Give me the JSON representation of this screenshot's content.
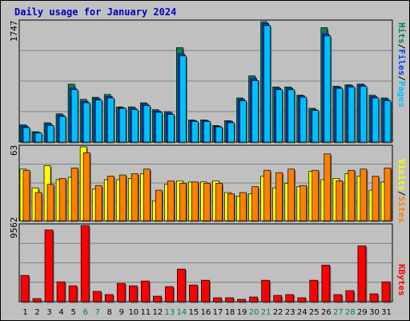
{
  "title": "Daily usage for January 2024",
  "colors": {
    "background": "#c0c0c0",
    "title": "#0000c0",
    "hits": "#00805c",
    "files": "#0040ff",
    "pages": "#00c0ff",
    "visits": "#ffff00",
    "sites": "#ff8000",
    "kbytes": "#ff0000",
    "weekend_label": "#00805c"
  },
  "labels": {
    "hits": "Hits",
    "files": "Files",
    "pages": "Pages",
    "visits": "Visits",
    "sites": "Sites",
    "kbytes": "KBytes",
    "separator": "/"
  },
  "chart_data": [
    {
      "type": "bar",
      "title": "Daily usage for January 2024",
      "categories": [
        "1",
        "2",
        "3",
        "4",
        "5",
        "6",
        "7",
        "8",
        "9",
        "10",
        "11",
        "12",
        "13",
        "14",
        "15",
        "16",
        "17",
        "18",
        "19",
        "20",
        "21",
        "22",
        "23",
        "24",
        "25",
        "26",
        "27",
        "28",
        "29",
        "30",
        "31"
      ],
      "weekend_days": [
        6,
        7,
        13,
        14,
        20,
        21,
        27,
        28
      ],
      "ymax_label": "1747",
      "ylim": [
        0,
        1747
      ],
      "series": [
        {
          "name": "Hits",
          "values": [
            250,
            150,
            280,
            410,
            840,
            620,
            650,
            690,
            510,
            510,
            570,
            470,
            440,
            1370,
            320,
            320,
            240,
            310,
            640,
            960,
            1747,
            800,
            800,
            680,
            490,
            1660,
            810,
            830,
            840,
            680,
            640
          ]
        },
        {
          "name": "Files",
          "values": [
            230,
            140,
            260,
            390,
            780,
            590,
            630,
            660,
            500,
            490,
            550,
            450,
            420,
            1280,
            310,
            310,
            230,
            300,
            620,
            920,
            1720,
            780,
            780,
            670,
            470,
            1570,
            800,
            820,
            830,
            660,
            620
          ]
        },
        {
          "name": "Pages",
          "values": [
            210,
            130,
            240,
            370,
            760,
            570,
            610,
            640,
            490,
            470,
            530,
            430,
            400,
            1250,
            300,
            300,
            220,
            280,
            600,
            890,
            1690,
            760,
            760,
            650,
            460,
            1540,
            780,
            800,
            810,
            640,
            600
          ]
        }
      ]
    },
    {
      "type": "bar",
      "categories": [
        "1",
        "2",
        "3",
        "4",
        "5",
        "6",
        "7",
        "8",
        "9",
        "10",
        "11",
        "12",
        "13",
        "14",
        "15",
        "16",
        "17",
        "18",
        "19",
        "20",
        "21",
        "22",
        "23",
        "24",
        "25",
        "26",
        "27",
        "28",
        "29",
        "30",
        "31"
      ],
      "ymax_label": "63",
      "ylim": [
        0,
        63
      ],
      "series": [
        {
          "name": "Visits",
          "values": [
            44,
            28,
            47,
            35,
            37,
            63,
            27,
            35,
            35,
            36,
            40,
            17,
            31,
            34,
            33,
            33,
            34,
            24,
            21,
            23,
            38,
            28,
            32,
            29,
            42,
            35,
            36,
            40,
            38,
            26,
            33
          ]
        },
        {
          "name": "Sites",
          "values": [
            43,
            24,
            31,
            36,
            45,
            58,
            30,
            38,
            39,
            40,
            44,
            26,
            34,
            32,
            33,
            32,
            32,
            23,
            24,
            29,
            43,
            41,
            44,
            30,
            43,
            57,
            34,
            43,
            44,
            38,
            45
          ]
        }
      ]
    },
    {
      "type": "bar",
      "categories": [
        "1",
        "2",
        "3",
        "4",
        "5",
        "6",
        "7",
        "8",
        "9",
        "10",
        "11",
        "12",
        "13",
        "14",
        "15",
        "16",
        "17",
        "18",
        "19",
        "20",
        "21",
        "22",
        "23",
        "24",
        "25",
        "26",
        "27",
        "28",
        "29",
        "30",
        "31"
      ],
      "ymax_label": "9562",
      "ylim": [
        0,
        9562
      ],
      "series": [
        {
          "name": "KBytes",
          "values": [
            3300,
            400,
            9000,
            2500,
            2000,
            9562,
            1300,
            900,
            2300,
            2000,
            2600,
            700,
            1900,
            4100,
            2100,
            2700,
            500,
            500,
            300,
            600,
            2700,
            800,
            900,
            500,
            2700,
            4600,
            900,
            1400,
            7000,
            1000,
            2500
          ]
        }
      ]
    }
  ]
}
